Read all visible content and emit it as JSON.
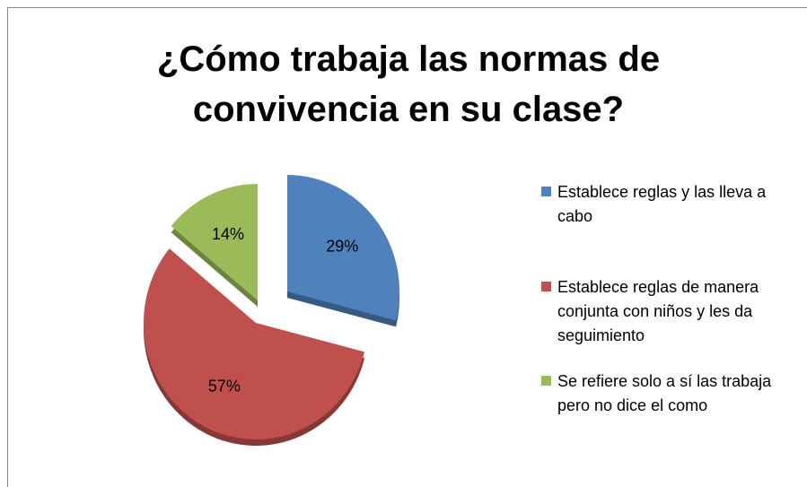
{
  "chart_data": {
    "type": "pie",
    "title": "¿Cómo trabaja las normas de convivencia en su clase?",
    "categories": [
      "Establece reglas y las lleva a cabo",
      "Establece reglas de manera conjunta con niños y les da seguimiento",
      "Se refiere solo a sí las trabaja pero no dice el como"
    ],
    "values": [
      29,
      57,
      14
    ],
    "value_labels": [
      "29%",
      "57%",
      "14%"
    ],
    "colors": [
      "#4f81bd",
      "#c0504d",
      "#9bbb59"
    ],
    "legend": "right"
  }
}
